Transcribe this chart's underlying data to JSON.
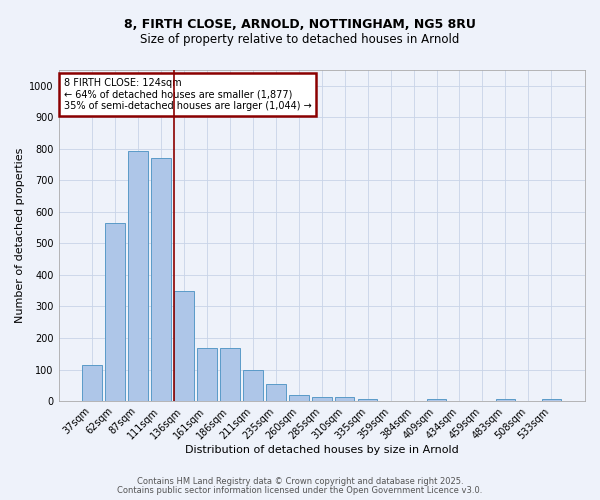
{
  "title1": "8, FIRTH CLOSE, ARNOLD, NOTTINGHAM, NG5 8RU",
  "title2": "Size of property relative to detached houses in Arnold",
  "xlabel": "Distribution of detached houses by size in Arnold",
  "ylabel": "Number of detached properties",
  "categories": [
    "37sqm",
    "62sqm",
    "87sqm",
    "111sqm",
    "136sqm",
    "161sqm",
    "186sqm",
    "211sqm",
    "235sqm",
    "260sqm",
    "285sqm",
    "310sqm",
    "335sqm",
    "359sqm",
    "384sqm",
    "409sqm",
    "434sqm",
    "459sqm",
    "483sqm",
    "508sqm",
    "533sqm"
  ],
  "values": [
    113,
    565,
    793,
    770,
    350,
    167,
    167,
    98,
    55,
    18,
    12,
    12,
    5,
    0,
    0,
    8,
    0,
    0,
    5,
    0,
    5
  ],
  "bar_color": "#aec6e8",
  "bar_edge_color": "#5a9ac8",
  "vline_color": "#8b0000",
  "annotation_text": "8 FIRTH CLOSE: 124sqm\n← 64% of detached houses are smaller (1,877)\n35% of semi-detached houses are larger (1,044) →",
  "annotation_box_color": "#8b0000",
  "annotation_bg": "white",
  "ylim": [
    0,
    1050
  ],
  "yticks": [
    0,
    100,
    200,
    300,
    400,
    500,
    600,
    700,
    800,
    900,
    1000
  ],
  "bg_color": "#eef2fa",
  "footer1": "Contains HM Land Registry data © Crown copyright and database right 2025.",
  "footer2": "Contains public sector information licensed under the Open Government Licence v3.0.",
  "grid_color": "#c8d4e8"
}
